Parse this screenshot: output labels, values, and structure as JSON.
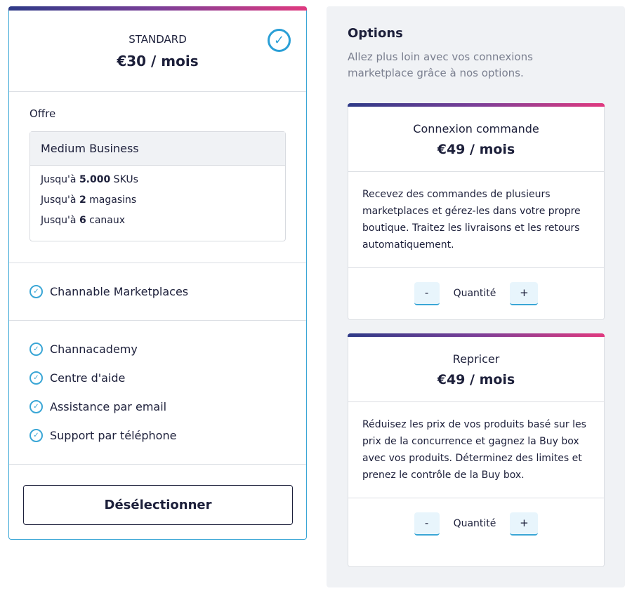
{
  "plan": {
    "name": "STANDARD",
    "price": "€30 / mois",
    "selected": true,
    "offer_label": "Offre",
    "offer_title": "Medium Business",
    "limits": [
      {
        "pre": "Jusqu'à ",
        "val": "5.000",
        "post": " SKUs"
      },
      {
        "pre": "Jusqu'à ",
        "val": "2",
        "post": " magasins"
      },
      {
        "pre": "Jusqu'à ",
        "val": "6",
        "post": " canaux"
      }
    ],
    "features_a": [
      "Channable Marketplaces"
    ],
    "features_b": [
      "Channacademy",
      "Centre d'aide",
      "Assistance par email",
      "Support par téléphone"
    ],
    "deselect_label": "Désélectionner"
  },
  "options": {
    "title": "Options",
    "subtitle": "Allez plus loin avec vos connexions marketplace grâce à nos options.",
    "cards": [
      {
        "title": "Connexion commande",
        "price": "€49 / mois",
        "description": "Recevez des commandes de plusieurs marketplaces et gérez-les dans votre propre boutique. Traitez les livraisons et les retours automatiquement.",
        "minus": "-",
        "quantity_label": "Quantité",
        "plus": "+"
      },
      {
        "title": "Repricer",
        "price": "€49 / mois",
        "description": "Réduisez les prix de vos produits basé sur les prix de la concurrence et gagnez la Buy box avec vos produits. Déterminez des limites et prenez le contrôle de la Buy box.",
        "minus": "-",
        "quantity_label": "Quantité",
        "plus": "+"
      }
    ]
  },
  "colors": {
    "accent": "#3aa6d6",
    "gradient": [
      "#2e3a87",
      "#7b3f98",
      "#e0397f"
    ]
  }
}
